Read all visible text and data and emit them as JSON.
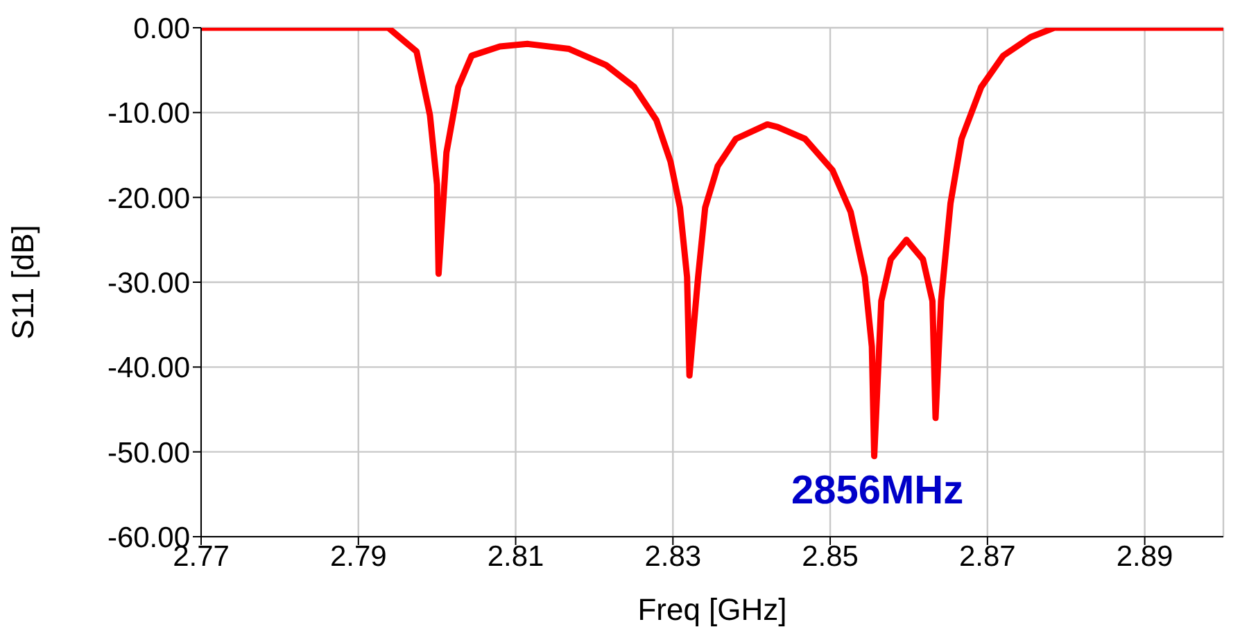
{
  "chart_data": {
    "type": "line",
    "xlabel": "Freq [GHz]",
    "ylabel": "S11 [dB]",
    "x": [
      2.77,
      2.7938,
      2.7974,
      2.7991,
      2.8,
      2.8002,
      2.8012,
      2.8027,
      2.8044,
      2.808,
      2.8115,
      2.8168,
      2.8215,
      2.8251,
      2.8279,
      2.8297,
      2.8309,
      2.8318,
      2.8321,
      2.8332,
      2.8341,
      2.8357,
      2.838,
      2.842,
      2.8433,
      2.8468,
      2.8503,
      2.8526,
      2.8544,
      2.8553,
      2.8556,
      2.8565,
      2.8577,
      2.8597,
      2.8618,
      2.863,
      2.8634,
      2.8641,
      2.8653,
      2.8667,
      2.8692,
      2.872,
      2.8755,
      2.8785,
      2.9
    ],
    "series": [
      {
        "color": "#ff0000",
        "values": [
          0,
          0,
          -2.8,
          -10.3,
          -18.5,
          -29,
          -14.7,
          -7,
          -3.3,
          -2.2,
          -1.9,
          -2.5,
          -4.4,
          -7,
          -10.9,
          -15.8,
          -21.2,
          -29.4,
          -41,
          -29.4,
          -21.2,
          -16.3,
          -13.1,
          -11.4,
          -11.7,
          -13.1,
          -16.8,
          -21.7,
          -29.4,
          -37.6,
          -50.5,
          -32.2,
          -27.3,
          -25,
          -27.3,
          -32.2,
          -46,
          -32.2,
          -20.7,
          -13.1,
          -7,
          -3.3,
          -1.1,
          0,
          0
        ]
      }
    ],
    "xlim": [
      2.77,
      2.9
    ],
    "xticks": [
      2.77,
      2.79,
      2.81,
      2.83,
      2.85,
      2.87,
      2.89
    ],
    "ylim": [
      -60,
      0
    ],
    "yticks": [
      {
        "value": -60,
        "label": "-60.00"
      },
      {
        "value": -50,
        "label": "-50.00"
      },
      {
        "value": -40,
        "label": "-40.00"
      },
      {
        "value": -30,
        "label": "-30.00"
      },
      {
        "value": -20,
        "label": "-20.00"
      },
      {
        "value": -10,
        "label": "-10.00"
      },
      {
        "value": 0,
        "label": "0.00"
      }
    ],
    "annotations": [
      {
        "text": "2856MHz",
        "x": 2.856,
        "y": -50.5
      }
    ],
    "grid": true,
    "legend": false,
    "marker": "none",
    "line_style": "solid"
  }
}
